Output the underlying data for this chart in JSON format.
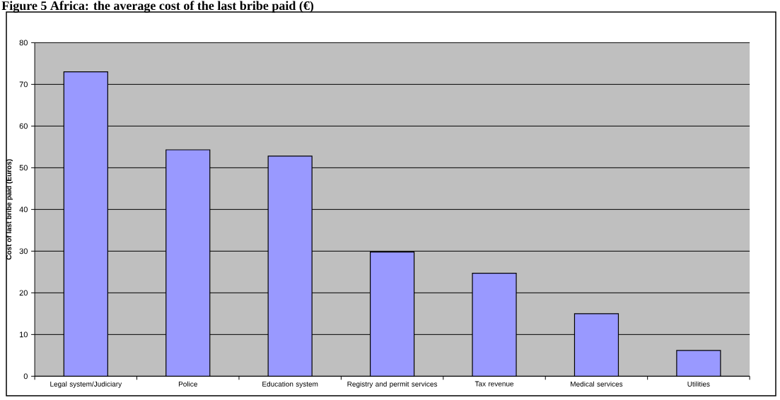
{
  "chart_data": {
    "type": "bar",
    "title": "Figure 5 Africa: the average cost of the last bribe paid (€)",
    "ylabel": "Cost of last bribe paid (Euros)",
    "categories": [
      "Legal system/Judiciary",
      "Police",
      "Education system",
      "Registry and permit services",
      "Tax revenue",
      "Medical services",
      "Utilities"
    ],
    "values": [
      73,
      54.3,
      52.8,
      29.8,
      24.7,
      15,
      6.2
    ],
    "color": "#9999ff",
    "ylim": [
      0,
      80
    ],
    "yticks": [
      0,
      10,
      20,
      30,
      40,
      50,
      60,
      70,
      80
    ],
    "grid": "y"
  }
}
